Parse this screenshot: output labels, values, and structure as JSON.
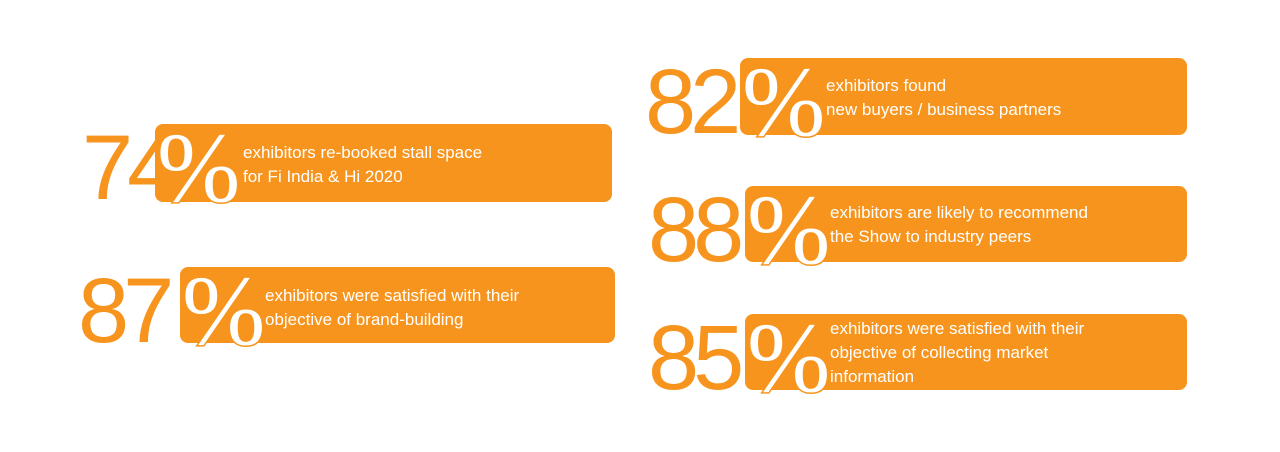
{
  "stats": [
    {
      "number": "74",
      "symbol": "%",
      "lines": [
        "exhibitors re-booked stall space",
        "for Fi India & Hi 2020"
      ]
    },
    {
      "number": "87",
      "symbol": "%",
      "lines": [
        "exhibitors were satisfied with their",
        "objective of brand-building"
      ]
    },
    {
      "number": "82",
      "symbol": "%",
      "lines": [
        "exhibitors found",
        "new buyers / business partners"
      ]
    },
    {
      "number": "88",
      "symbol": "%",
      "lines": [
        "exhibitors are likely to recommend",
        "the Show to industry peers"
      ]
    },
    {
      "number": "85",
      "symbol": "%",
      "lines": [
        "exhibitors were satisfied with their",
        "objective of collecting market",
        "information"
      ]
    }
  ]
}
